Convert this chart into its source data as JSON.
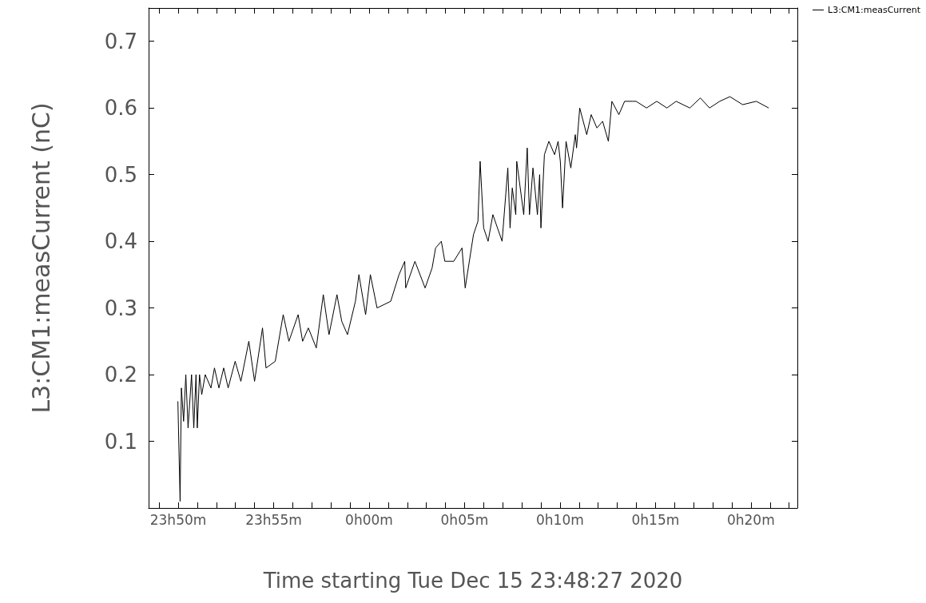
{
  "chart_data": {
    "type": "line",
    "xlabel": "Time starting Tue Dec 15 23:48:27 2020",
    "ylabel": "L3:CM1:measCurrent (nC)",
    "xlim": [
      "2020-12-15T23:48:27",
      "2020-12-16T00:22:26"
    ],
    "ylim": [
      0,
      0.75
    ],
    "xticks": [
      {
        "value": "2020-12-15T23:49",
        "label": null
      },
      {
        "value": "2020-12-15T23:50",
        "label": "23h50m"
      },
      {
        "value": "2020-12-15T23:51",
        "label": null
      },
      {
        "value": "2020-12-15T23:52",
        "label": null
      },
      {
        "value": "2020-12-15T23:53",
        "label": null
      },
      {
        "value": "2020-12-15T23:54",
        "label": null
      },
      {
        "value": "2020-12-15T23:55",
        "label": "23h55m"
      },
      {
        "value": "2020-12-15T23:56",
        "label": null
      },
      {
        "value": "2020-12-15T23:57",
        "label": null
      },
      {
        "value": "2020-12-15T23:58",
        "label": null
      },
      {
        "value": "2020-12-15T23:59",
        "label": null
      },
      {
        "value": "2020-12-16T00:00",
        "label": "0h00m"
      },
      {
        "value": "2020-12-16T00:01",
        "label": null
      },
      {
        "value": "2020-12-16T00:02",
        "label": null
      },
      {
        "value": "2020-12-16T00:03",
        "label": null
      },
      {
        "value": "2020-12-16T00:04",
        "label": null
      },
      {
        "value": "2020-12-16T00:05",
        "label": "0h05m"
      },
      {
        "value": "2020-12-16T00:06",
        "label": null
      },
      {
        "value": "2020-12-16T00:07",
        "label": null
      },
      {
        "value": "2020-12-16T00:08",
        "label": null
      },
      {
        "value": "2020-12-16T00:09",
        "label": null
      },
      {
        "value": "2020-12-16T00:10",
        "label": "0h10m"
      },
      {
        "value": "2020-12-16T00:11",
        "label": null
      },
      {
        "value": "2020-12-16T00:12",
        "label": null
      },
      {
        "value": "2020-12-16T00:13",
        "label": null
      },
      {
        "value": "2020-12-16T00:14",
        "label": null
      },
      {
        "value": "2020-12-16T00:15",
        "label": "0h15m"
      },
      {
        "value": "2020-12-16T00:16",
        "label": null
      },
      {
        "value": "2020-12-16T00:17",
        "label": null
      },
      {
        "value": "2020-12-16T00:18",
        "label": null
      },
      {
        "value": "2020-12-16T00:19",
        "label": null
      },
      {
        "value": "2020-12-16T00:20",
        "label": "0h20m"
      },
      {
        "value": "2020-12-16T00:21",
        "label": null
      },
      {
        "value": "2020-12-16T00:22",
        "label": null
      }
    ],
    "yticks": [
      0.1,
      0.2,
      0.3,
      0.4,
      0.5,
      0.6,
      0.7
    ],
    "legend": "top right",
    "grid": false,
    "marker": "none",
    "line_style": "solid",
    "series": [
      {
        "name": "L3:CM1:measCurrent",
        "color": "#000000",
        "x": [
          "2020-12-15T23:49:59",
          "2020-12-15T23:50:06",
          "2020-12-15T23:50:10",
          "2020-12-15T23:50:17",
          "2020-12-15T23:50:24",
          "2020-12-15T23:50:31",
          "2020-12-15T23:50:42",
          "2020-12-15T23:50:49",
          "2020-12-15T23:50:56",
          "2020-12-15T23:51:00",
          "2020-12-15T23:51:07",
          "2020-12-15T23:51:14",
          "2020-12-15T23:51:25",
          "2020-12-15T23:51:43",
          "2020-12-15T23:51:54",
          "2020-12-15T23:52:08",
          "2020-12-15T23:52:23",
          "2020-12-15T23:52:37",
          "2020-12-15T23:52:59",
          "2020-12-15T23:53:17",
          "2020-12-15T23:53:42",
          "2020-12-15T23:54:00",
          "2020-12-15T23:54:25",
          "2020-12-15T23:54:36",
          "2020-12-15T23:55:05",
          "2020-12-15T23:55:30",
          "2020-12-15T23:55:48",
          "2020-12-15T23:56:17",
          "2020-12-15T23:56:31",
          "2020-12-15T23:56:49",
          "2020-12-15T23:57:14",
          "2020-12-15T23:57:36",
          "2020-12-15T23:57:54",
          "2020-12-15T23:58:19",
          "2020-12-15T23:58:34",
          "2020-12-15T23:58:52",
          "2020-12-15T23:59:17",
          "2020-12-15T23:59:28",
          "2020-12-15T23:59:49",
          "2020-12-16T00:00:04",
          "2020-12-16T00:00:25",
          "2020-12-16T00:01:08",
          "2020-12-16T00:01:34",
          "2020-12-16T00:01:52",
          "2020-12-16T00:01:55",
          "2020-12-16T00:02:24",
          "2020-12-16T00:02:56",
          "2020-12-16T00:03:18",
          "2020-12-16T00:03:29",
          "2020-12-16T00:03:47",
          "2020-12-16T00:03:58",
          "2020-12-16T00:04:26",
          "2020-12-16T00:04:52",
          "2020-12-16T00:05:02",
          "2020-12-16T00:05:28",
          "2020-12-16T00:05:42",
          "2020-12-16T00:05:49",
          "2020-12-16T00:06:00",
          "2020-12-16T00:06:14",
          "2020-12-16T00:06:29",
          "2020-12-16T00:06:58",
          "2020-12-16T00:07:16",
          "2020-12-16T00:07:23",
          "2020-12-16T00:07:30",
          "2020-12-16T00:07:41",
          "2020-12-16T00:07:44",
          "2020-12-16T00:08:06",
          "2020-12-16T00:08:17",
          "2020-12-16T00:08:24",
          "2020-12-16T00:08:35",
          "2020-12-16T00:08:49",
          "2020-12-16T00:08:56",
          "2020-12-16T00:09:00",
          "2020-12-16T00:09:11",
          "2020-12-16T00:09:25",
          "2020-12-16T00:09:43",
          "2020-12-16T00:09:54",
          "2020-12-16T00:10:01",
          "2020-12-16T00:10:08",
          "2020-12-16T00:10:19",
          "2020-12-16T00:10:34",
          "2020-12-16T00:10:48",
          "2020-12-16T00:10:52",
          "2020-12-16T00:11:02",
          "2020-12-16T00:11:24",
          "2020-12-16T00:11:38",
          "2020-12-16T00:11:56",
          "2020-12-16T00:12:14",
          "2020-12-16T00:12:32",
          "2020-12-16T00:12:43",
          "2020-12-16T00:13:05",
          "2020-12-16T00:13:23",
          "2020-12-16T00:13:48",
          "2020-12-16T00:13:59",
          "2020-12-16T00:14:32",
          "2020-12-16T00:15:04",
          "2020-12-16T00:15:36",
          "2020-12-16T00:16:05",
          "2020-12-16T00:16:48",
          "2020-12-16T00:17:21",
          "2020-12-16T00:17:50",
          "2020-12-16T00:18:22",
          "2020-12-16T00:18:54",
          "2020-12-16T00:19:34",
          "2020-12-16T00:20:17",
          "2020-12-16T00:20:56"
        ],
        "values": [
          0.16,
          0.01,
          0.18,
          0.13,
          0.2,
          0.12,
          0.2,
          0.12,
          0.2,
          0.12,
          0.2,
          0.17,
          0.2,
          0.18,
          0.21,
          0.18,
          0.21,
          0.18,
          0.22,
          0.19,
          0.25,
          0.19,
          0.27,
          0.21,
          0.22,
          0.29,
          0.25,
          0.29,
          0.25,
          0.27,
          0.24,
          0.32,
          0.26,
          0.32,
          0.28,
          0.26,
          0.31,
          0.35,
          0.29,
          0.35,
          0.3,
          0.31,
          0.35,
          0.37,
          0.33,
          0.37,
          0.33,
          0.36,
          0.39,
          0.4,
          0.37,
          0.37,
          0.39,
          0.33,
          0.41,
          0.43,
          0.52,
          0.42,
          0.4,
          0.44,
          0.4,
          0.51,
          0.42,
          0.48,
          0.44,
          0.52,
          0.44,
          0.54,
          0.44,
          0.51,
          0.44,
          0.5,
          0.42,
          0.53,
          0.55,
          0.53,
          0.55,
          0.52,
          0.45,
          0.55,
          0.51,
          0.56,
          0.54,
          0.6,
          0.56,
          0.59,
          0.57,
          0.58,
          0.55,
          0.61,
          0.59,
          0.61,
          0.61,
          0.61,
          0.6,
          0.61,
          0.6,
          0.61,
          0.6,
          0.615,
          0.6,
          0.61,
          0.617,
          0.605,
          0.61,
          0.6
        ]
      }
    ]
  }
}
